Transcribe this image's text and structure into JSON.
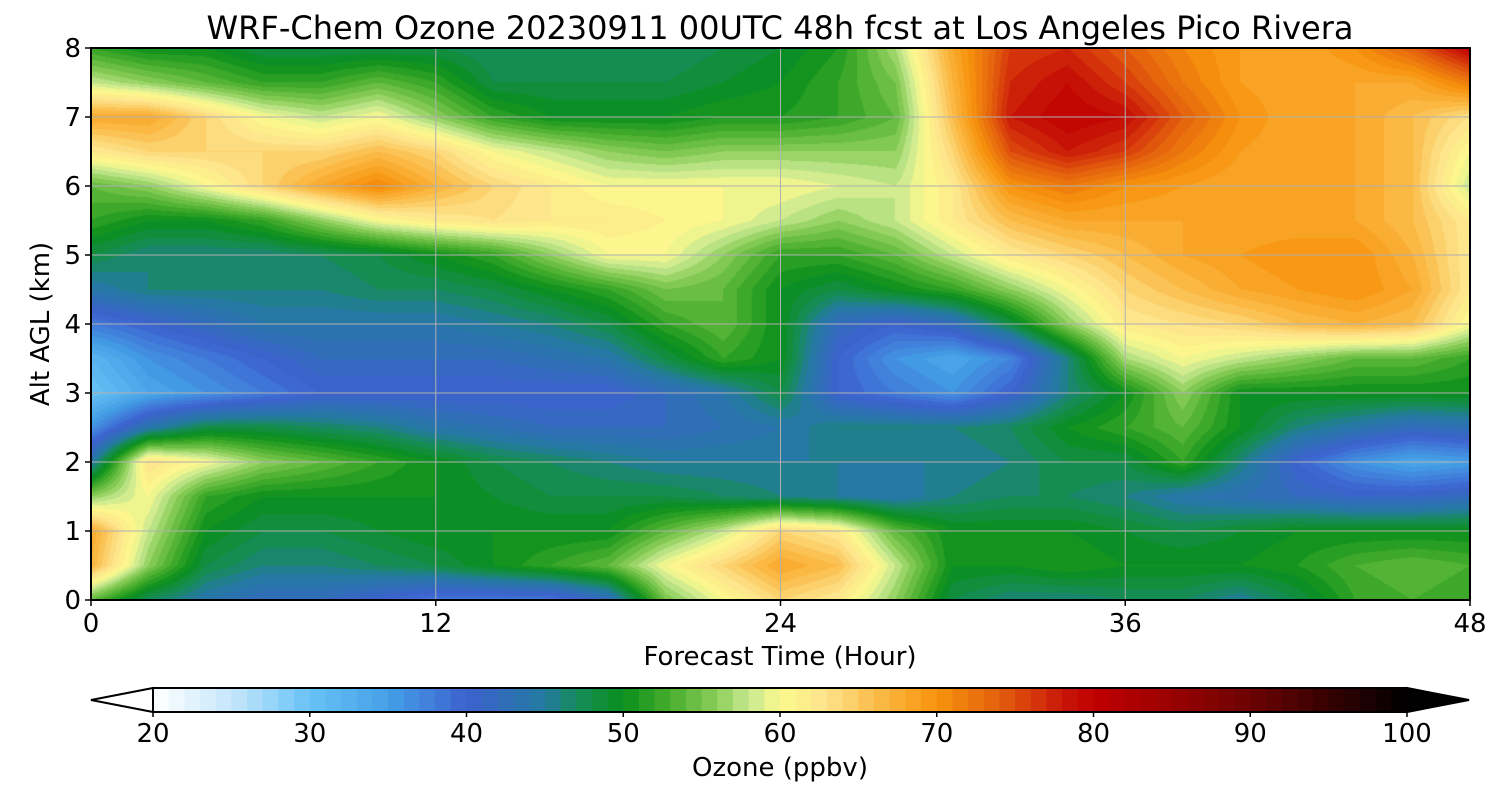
{
  "chart_data": {
    "type": "heatmap",
    "title": "WRF-Chem Ozone  20230911 00UTC 48h fcst at Los Angeles Pico Rivera",
    "xlabel": "Forecast Time (Hour)",
    "ylabel": "Alt AGL (km)",
    "xlim": [
      0,
      48
    ],
    "ylim": [
      0,
      8
    ],
    "xticks": [
      "0",
      "12",
      "24",
      "36",
      "48"
    ],
    "yticks": [
      "0",
      "1",
      "2",
      "3",
      "4",
      "5",
      "6",
      "7",
      "8"
    ],
    "grid": true,
    "x": [
      0,
      2,
      4,
      6,
      8,
      10,
      12,
      14,
      16,
      18,
      20,
      22,
      24,
      26,
      28,
      30,
      32,
      34,
      36,
      38,
      40,
      42,
      44,
      46,
      48
    ],
    "y": [
      0,
      0.5,
      1,
      1.5,
      2,
      2.5,
      3,
      3.5,
      4,
      4.5,
      5,
      5.5,
      6,
      6.5,
      7,
      7.5,
      8
    ],
    "z": [
      [
        54,
        47,
        44,
        42,
        42,
        40,
        38,
        38,
        38,
        42,
        55,
        60,
        64,
        62,
        56,
        48,
        46,
        46,
        47,
        47,
        45,
        48,
        52,
        53,
        52
      ],
      [
        67,
        56,
        48,
        46,
        46,
        47,
        48,
        50,
        52,
        54,
        60,
        64,
        68,
        66,
        58,
        50,
        50,
        51,
        50,
        50,
        50,
        51,
        53,
        54,
        53
      ],
      [
        68,
        58,
        50,
        48,
        48,
        49,
        50,
        50,
        50,
        50,
        54,
        58,
        64,
        62,
        54,
        50,
        50,
        50,
        49,
        48,
        49,
        50,
        50,
        50,
        50
      ],
      [
        56,
        60,
        52,
        50,
        50,
        50,
        50,
        49,
        48,
        48,
        48,
        47,
        46,
        45,
        44,
        46,
        47,
        47,
        46,
        44,
        43,
        42,
        41,
        41,
        42
      ],
      [
        44,
        63,
        60,
        56,
        54,
        52,
        50,
        48,
        47,
        46,
        45,
        45,
        45,
        45,
        45,
        45,
        46,
        48,
        48,
        52,
        46,
        40,
        36,
        34,
        35
      ],
      [
        36,
        44,
        48,
        48,
        47,
        46,
        44,
        43,
        42,
        42,
        42,
        43,
        44,
        46,
        46,
        46,
        47,
        50,
        52,
        54,
        50,
        46,
        44,
        42,
        43
      ],
      [
        30,
        34,
        36,
        38,
        40,
        40,
        40,
        40,
        40,
        40,
        42,
        44,
        48,
        40,
        38,
        36,
        40,
        46,
        50,
        56,
        50,
        50,
        50,
        50,
        50
      ],
      [
        32,
        36,
        38,
        40,
        42,
        42,
        42,
        42,
        43,
        44,
        48,
        52,
        50,
        40,
        36,
        34,
        37,
        46,
        57,
        60,
        58,
        56,
        54,
        54,
        52
      ],
      [
        38,
        40,
        42,
        44,
        44,
        44,
        44,
        45,
        46,
        48,
        52,
        54,
        50,
        42,
        40,
        42,
        48,
        56,
        62,
        63,
        64,
        66,
        67,
        66,
        60
      ],
      [
        44,
        46,
        46,
        46,
        46,
        47,
        47,
        48,
        50,
        52,
        55,
        54,
        50,
        48,
        50,
        52,
        56,
        60,
        64,
        66,
        68,
        69,
        70,
        68,
        62
      ],
      [
        48,
        46,
        46,
        46,
        47,
        48,
        50,
        52,
        56,
        60,
        60,
        56,
        52,
        52,
        54,
        58,
        62,
        64,
        66,
        68,
        69,
        70,
        70,
        67,
        62
      ],
      [
        52,
        50,
        50,
        52,
        56,
        60,
        62,
        63,
        62,
        62,
        61,
        60,
        58,
        56,
        58,
        62,
        66,
        68,
        68,
        68,
        68,
        68,
        68,
        66,
        62
      ],
      [
        54,
        56,
        60,
        64,
        68,
        71,
        67,
        64,
        62,
        60,
        60,
        60,
        60,
        59,
        58,
        62,
        70,
        72,
        70,
        69,
        68,
        68,
        68,
        66,
        58
      ],
      [
        62,
        64,
        64,
        64,
        64,
        66,
        64,
        60,
        58,
        56,
        55,
        56,
        56,
        56,
        56,
        64,
        75,
        78,
        76,
        72,
        69,
        68,
        68,
        66,
        60
      ],
      [
        68,
        68,
        64,
        60,
        58,
        60,
        56,
        52,
        50,
        50,
        50,
        51,
        51,
        52,
        54,
        66,
        78,
        80,
        79,
        74,
        70,
        68,
        68,
        66,
        63
      ],
      [
        58,
        56,
        54,
        52,
        52,
        54,
        52,
        48,
        48,
        48,
        48,
        49,
        50,
        52,
        55,
        67,
        77,
        79,
        76,
        72,
        69,
        68,
        68,
        68,
        72
      ],
      [
        52,
        50,
        50,
        48,
        48,
        48,
        48,
        47,
        47,
        47,
        47,
        48,
        49,
        51,
        57,
        68,
        76,
        77,
        74,
        71,
        69,
        68,
        70,
        74,
        80
      ]
    ],
    "colorbar": {
      "label": "Ozone  (ppbv)",
      "range": [
        20,
        100
      ],
      "ticks": [
        "20",
        "30",
        "40",
        "50",
        "60",
        "70",
        "80",
        "90",
        "100"
      ],
      "extend": "both",
      "stops": [
        {
          "v": 20,
          "c": "#ffffff"
        },
        {
          "v": 25,
          "c": "#c6e7fb"
        },
        {
          "v": 30,
          "c": "#67c2f6"
        },
        {
          "v": 35,
          "c": "#44a0e6"
        },
        {
          "v": 40,
          "c": "#3d62cf"
        },
        {
          "v": 45,
          "c": "#237aa0"
        },
        {
          "v": 47,
          "c": "#178b5c"
        },
        {
          "v": 50,
          "c": "#0a8f1c"
        },
        {
          "v": 53,
          "c": "#47ad2c"
        },
        {
          "v": 56,
          "c": "#8cce5a"
        },
        {
          "v": 58,
          "c": "#c6e891"
        },
        {
          "v": 60,
          "c": "#fdf98d"
        },
        {
          "v": 63,
          "c": "#fde28a"
        },
        {
          "v": 66,
          "c": "#fbbd4a"
        },
        {
          "v": 70,
          "c": "#f7930d"
        },
        {
          "v": 74,
          "c": "#e45f0e"
        },
        {
          "v": 78,
          "c": "#c81708"
        },
        {
          "v": 80,
          "c": "#c00000"
        },
        {
          "v": 85,
          "c": "#9a0202"
        },
        {
          "v": 90,
          "c": "#6c0202"
        },
        {
          "v": 95,
          "c": "#350101"
        },
        {
          "v": 100,
          "c": "#000000"
        }
      ]
    }
  }
}
